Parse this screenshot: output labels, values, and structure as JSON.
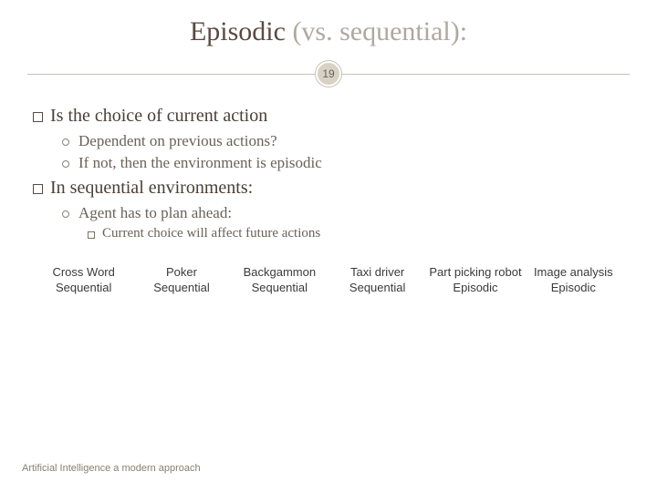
{
  "title": {
    "dark": "Episodic",
    "light": " (vs. sequential):",
    "dark_color": "#5a4a42",
    "light_color": "#b0a89e",
    "fontsize": 30
  },
  "slide_number": "19",
  "bullets": {
    "l1a": "Is the choice of current action",
    "l2a": "Dependent on previous actions?",
    "l2b": "If not, then the environment is episodic",
    "l1b": "In sequential environments:",
    "l2c": "Agent has to plan ahead:",
    "l3a": "Current choice will affect future actions"
  },
  "table": {
    "columns": [
      {
        "header": "Cross Word",
        "value": "Sequential"
      },
      {
        "header": "Poker",
        "value": "Sequential"
      },
      {
        "header": "Backgammon",
        "value": "Sequential"
      },
      {
        "header": "Taxi driver",
        "value": "Sequential"
      },
      {
        "header": "Part picking robot",
        "value": "Episodic"
      },
      {
        "header": "Image analysis",
        "value": "Episodic"
      }
    ],
    "font_family": "Arial",
    "fontsize": 13,
    "text_color": "#3a3a3a"
  },
  "footer": "Artificial Intelligence a modern approach",
  "colors": {
    "background": "#ffffff",
    "divider": "#c8c0b4",
    "badge_bg": "#d8d2c6",
    "body_text": "#4a4038",
    "sub_text": "#6a6258",
    "footer_text": "#888070"
  }
}
